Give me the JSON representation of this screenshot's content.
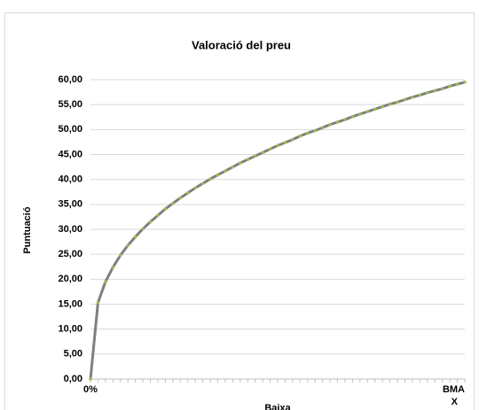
{
  "chart_data": {
    "type": "line",
    "title": "Valoració del preu",
    "x_label": "Baixa",
    "y_label": "Puntuació",
    "categories": [
      "0%",
      null,
      null,
      null,
      null,
      null,
      null,
      null,
      null,
      null,
      null,
      null,
      null,
      null,
      null,
      null,
      null,
      null,
      null,
      null,
      null,
      null,
      null,
      null,
      null,
      null,
      null,
      null,
      null,
      null,
      null,
      null,
      null,
      null,
      null,
      null,
      null,
      null,
      null,
      null,
      null,
      null,
      null,
      null,
      null,
      null,
      null,
      null,
      null,
      null,
      "BMA X"
    ],
    "values": [
      0,
      15.3,
      19.5,
      22.4,
      24.8,
      26.8,
      28.5,
      30.1,
      31.5,
      32.8,
      34.1,
      35.2,
      36.3,
      37.3,
      38.3,
      39.2,
      40.1,
      40.9,
      41.7,
      42.5,
      43.3,
      44.0,
      44.7,
      45.4,
      46.1,
      46.8,
      47.4,
      48.0,
      48.7,
      49.3,
      49.8,
      50.4,
      51.0,
      51.5,
      52.0,
      52.6,
      53.1,
      53.6,
      54.1,
      54.6,
      55.1,
      55.5,
      56.0,
      56.5,
      56.9,
      57.4,
      57.8,
      58.2,
      58.7,
      59.1,
      59.5
    ],
    "color": "#7f7f7f",
    "marker_color": "#9bbb59",
    "ylim": [
      0,
      60
    ],
    "yticks": [
      {
        "value": 0,
        "label": "0,00"
      },
      {
        "value": 5,
        "label": "5,00"
      },
      {
        "value": 10,
        "label": "10,00"
      },
      {
        "value": 15,
        "label": "15,00"
      },
      {
        "value": 20,
        "label": "20,00"
      },
      {
        "value": 25,
        "label": "25,00"
      },
      {
        "value": 30,
        "label": "30,00"
      },
      {
        "value": 35,
        "label": "35,00"
      },
      {
        "value": 40,
        "label": "40,00"
      },
      {
        "value": 45,
        "label": "45,00"
      },
      {
        "value": 50,
        "label": "50,00"
      },
      {
        "value": 55,
        "label": "55,00"
      },
      {
        "value": 60,
        "label": "60,00"
      }
    ],
    "grid": true
  }
}
